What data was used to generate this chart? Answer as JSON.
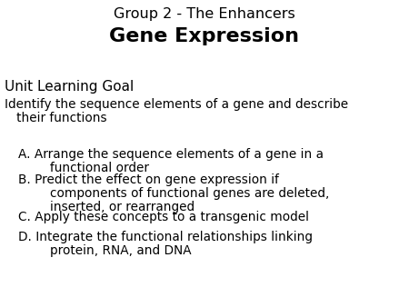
{
  "title_line1": "Group 2 - The Enhancers",
  "title_line2": "Gene Expression",
  "section_header": "Unit Learning Goal",
  "intro_line1": "Identify the sequence elements of a gene and describe",
  "intro_line2": "   their functions",
  "items": [
    [
      "A. Arrange the sequence elements of a gene in a",
      "        functional order"
    ],
    [
      "B. Predict the effect on gene expression if",
      "        components of functional genes are deleted,",
      "        inserted, or rearranged"
    ],
    [
      "C. Apply these concepts to a transgenic model"
    ],
    [
      "D. Integrate the functional relationships linking",
      "        protein, RNA, and DNA"
    ]
  ],
  "bg_color": "#ffffff",
  "text_color": "#000000",
  "title1_fontsize": 11.5,
  "title2_fontsize": 16,
  "header_fontsize": 11,
  "body_fontsize": 9.8,
  "item_fontsize": 9.8
}
